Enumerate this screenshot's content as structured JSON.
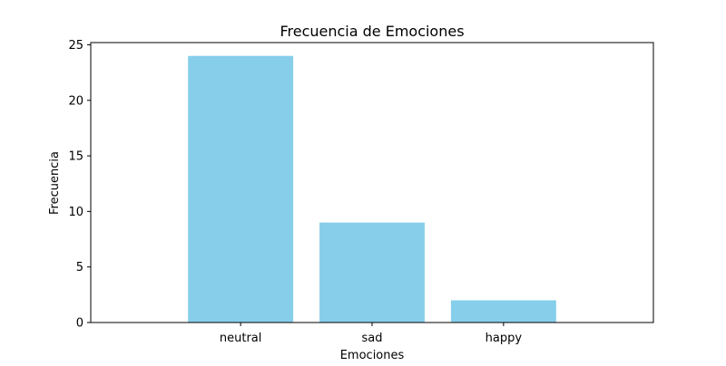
{
  "chart_data": {
    "type": "bar",
    "title": "Frecuencia de Emociones",
    "xlabel": "Emociones",
    "ylabel": "Frecuencia",
    "categories": [
      "neutral",
      "sad",
      "happy"
    ],
    "values": [
      24,
      9,
      2
    ],
    "ylim": [
      0,
      25.2
    ],
    "yticks": [
      0,
      5,
      10,
      15,
      20,
      25
    ],
    "bar_color": "#87ceeb",
    "grid": false,
    "legend": "none"
  }
}
